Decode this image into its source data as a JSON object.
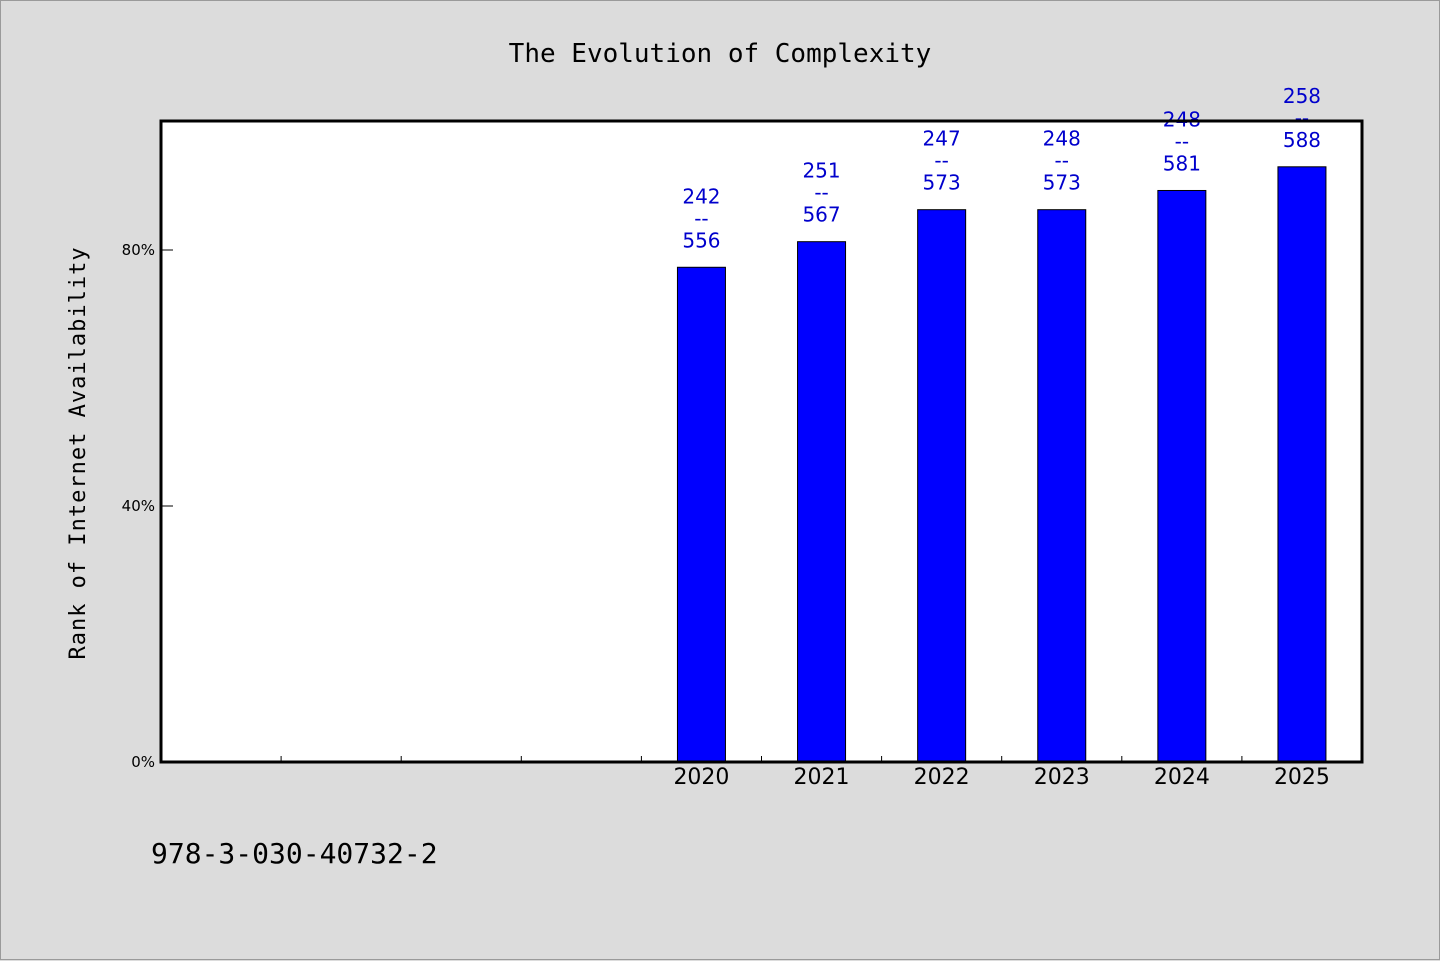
{
  "chart_data": {
    "type": "bar",
    "title": "The Evolution of Complexity",
    "ylabel": "Rank of Internet Availability",
    "xlabel": "",
    "categories": [
      "2020",
      "2021",
      "2022",
      "2023",
      "2024",
      "2025"
    ],
    "slots": [
      "",
      "",
      "",
      "",
      "2020",
      "2021",
      "2022",
      "2023",
      "2024",
      "2025"
    ],
    "values": [
      77.3,
      81.3,
      86.3,
      86.3,
      89.3,
      93.0
    ],
    "data_labels": [
      {
        "top": "242",
        "sep": "--",
        "bottom": "556"
      },
      {
        "top": "251",
        "sep": "--",
        "bottom": "567"
      },
      {
        "top": "247",
        "sep": "--",
        "bottom": "573"
      },
      {
        "top": "248",
        "sep": "--",
        "bottom": "573"
      },
      {
        "top": "248",
        "sep": "--",
        "bottom": "581"
      },
      {
        "top": "258",
        "sep": "--",
        "bottom": "588"
      }
    ],
    "yticks": [
      {
        "value": 0,
        "label": "0%"
      },
      {
        "value": 40,
        "label": "40%"
      },
      {
        "value": 80,
        "label": "80%"
      }
    ],
    "ylim": [
      0,
      100
    ],
    "grid": false,
    "colors": {
      "bar": "#0000ff",
      "label": "#0000cc",
      "background": "#dcdcdc",
      "plot_background": "#ffffff"
    }
  },
  "footer": {
    "isbn": "978-3-030-40732-2"
  }
}
